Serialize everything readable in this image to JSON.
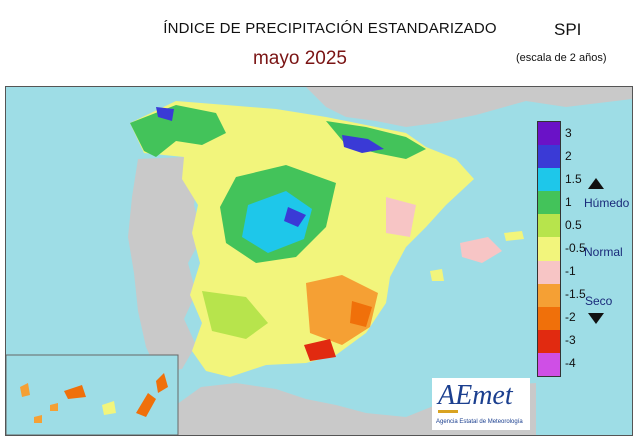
{
  "map": {
    "title": "ÍNDICE DE PRECIPITACIÓN ESTANDARIZADO",
    "subtitle": "mayo  2025",
    "index_label": "SPI",
    "scale_note": "(escala de 2 años)"
  },
  "legend": {
    "ticks": [
      "3",
      "2",
      "1.5",
      "1",
      "0.5",
      "-0.5",
      "-1",
      "-1.5",
      "-2",
      "-3",
      "-4"
    ],
    "humedo_label": "Húmedo",
    "normal_label": "Normal",
    "seco_label": "Seco",
    "bands": [
      {
        "range": "3 a 4",
        "color": "#6a12c7"
      },
      {
        "range": "2 a 3",
        "color": "#3a3ad6"
      },
      {
        "range": "1.5 a 2",
        "color": "#1ec7ea"
      },
      {
        "range": "1 a 1.5",
        "color": "#43c35a"
      },
      {
        "range": "0.5 a 1",
        "color": "#b7e44c"
      },
      {
        "range": "-0.5 a 0.5",
        "color": "#f2f57c"
      },
      {
        "range": "-1 a -0.5",
        "color": "#f7c5c5"
      },
      {
        "range": "-1.5 a -1",
        "color": "#f5a034"
      },
      {
        "range": "-2 a -1.5",
        "color": "#f0700a"
      },
      {
        "range": "-3 a -2",
        "color": "#e12a10"
      },
      {
        "range": "-4 a -3",
        "color": "#cf4fe6"
      }
    ]
  },
  "colors": {
    "sea": "#9edde6",
    "land_outside": "#c9c9c9",
    "border": "#ffffff"
  },
  "logo": {
    "name": "AEmet",
    "tagline": "Agencia Estatal de Meteorología"
  }
}
